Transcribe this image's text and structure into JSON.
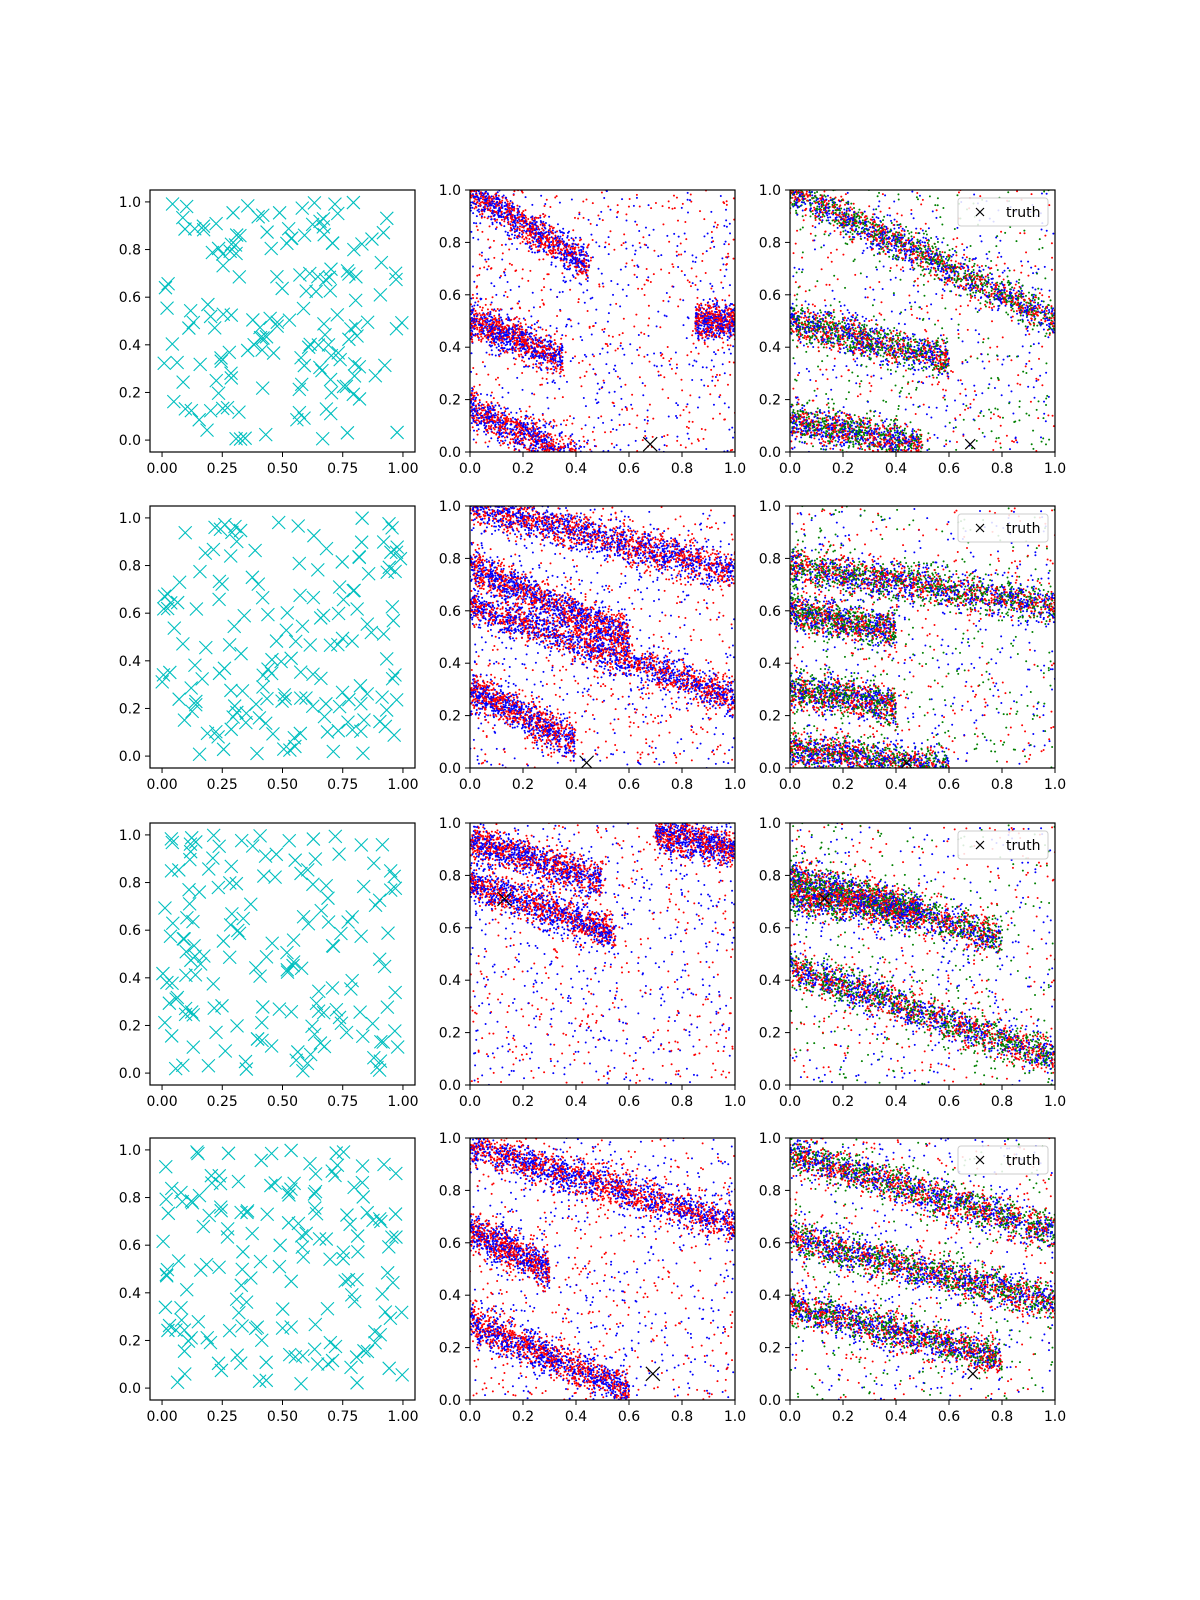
{
  "figure": {
    "layout": "4 rows x 3 columns grid of scatter plots",
    "legend_label": "truth",
    "legend_marker": "x",
    "colors": {
      "samples": "#00bfbf",
      "series_red": "#ff0000",
      "series_blue": "#0000ff",
      "series_green": "#008000",
      "truth": "#000000"
    }
  },
  "chart_data": [
    {
      "row": 0,
      "col": 0,
      "type": "scatter",
      "marker": "x",
      "color": "#00bfbf",
      "xlim": [
        -0.05,
        1.05
      ],
      "ylim": [
        -0.05,
        1.05
      ],
      "xticks": [
        "0.00",
        "0.25",
        "0.50",
        "0.75",
        "1.00"
      ],
      "yticks": [
        "0.0",
        "0.2",
        "0.4",
        "0.6",
        "0.8",
        "1.0"
      ],
      "n_points": 160
    },
    {
      "row": 0,
      "col": 1,
      "type": "scatter",
      "series": [
        {
          "name": "blue",
          "color": "#0000ff"
        },
        {
          "name": "red",
          "color": "#ff0000"
        }
      ],
      "bands": [
        {
          "y0": 1.0,
          "slope": -0.65,
          "w": 0.45
        },
        {
          "y0": 0.5,
          "slope": -0.4,
          "w": 0.35
        },
        {
          "y0": 0.17,
          "slope": -0.5,
          "w": 0.55
        },
        {
          "y0": 0.5,
          "slope": 0.0,
          "w": 0.2,
          "x0": 0.85
        }
      ],
      "truth": {
        "x": 0.68,
        "y": 0.03
      },
      "xlim": [
        0,
        1
      ],
      "ylim": [
        0,
        1
      ],
      "xticks": [
        "0.0",
        "0.2",
        "0.4",
        "0.6",
        "0.8",
        "1.0"
      ],
      "yticks": [
        "0.0",
        "0.2",
        "0.4",
        "0.6",
        "0.8",
        "1.0"
      ]
    },
    {
      "row": 0,
      "col": 2,
      "type": "scatter",
      "series": [
        {
          "name": "blue",
          "color": "#0000ff"
        },
        {
          "name": "red",
          "color": "#ff0000"
        },
        {
          "name": "green",
          "color": "#008000"
        }
      ],
      "bands": [
        {
          "y0": 1.0,
          "slope": -0.5,
          "w": 1.0
        },
        {
          "y0": 0.5,
          "slope": -0.25,
          "w": 0.6
        },
        {
          "y0": 0.12,
          "slope": -0.2,
          "w": 0.5
        }
      ],
      "truth": {
        "x": 0.68,
        "y": 0.03
      },
      "legend": "truth",
      "xlim": [
        0,
        1
      ],
      "ylim": [
        0,
        1
      ],
      "xticks": [
        "0.0",
        "0.2",
        "0.4",
        "0.6",
        "0.8",
        "1.0"
      ],
      "yticks": [
        "0.0",
        "0.2",
        "0.4",
        "0.6",
        "0.8",
        "1.0"
      ]
    },
    {
      "row": 1,
      "col": 0,
      "type": "scatter",
      "marker": "x",
      "color": "#00bfbf",
      "xlim": [
        -0.05,
        1.05
      ],
      "ylim": [
        -0.05,
        1.05
      ],
      "xticks": [
        "0.00",
        "0.25",
        "0.50",
        "0.75",
        "1.00"
      ],
      "yticks": [
        "0.0",
        "0.2",
        "0.4",
        "0.6",
        "0.8",
        "1.0"
      ],
      "n_points": 160
    },
    {
      "row": 1,
      "col": 1,
      "type": "scatter",
      "series": [
        {
          "name": "blue",
          "color": "#0000ff"
        },
        {
          "name": "red",
          "color": "#ff0000"
        }
      ],
      "bands": [
        {
          "y0": 1.0,
          "slope": -0.25,
          "w": 1.0
        },
        {
          "y0": 0.77,
          "slope": -0.45,
          "w": 0.6
        },
        {
          "y0": 0.62,
          "slope": -0.35,
          "w": 1.0
        },
        {
          "y0": 0.3,
          "slope": -0.5,
          "w": 0.4
        }
      ],
      "truth": {
        "x": 0.44,
        "y": 0.02
      },
      "xlim": [
        0,
        1
      ],
      "ylim": [
        0,
        1
      ],
      "xticks": [
        "0.0",
        "0.2",
        "0.4",
        "0.6",
        "0.8",
        "1.0"
      ],
      "yticks": [
        "0.0",
        "0.2",
        "0.4",
        "0.6",
        "0.8",
        "1.0"
      ]
    },
    {
      "row": 1,
      "col": 2,
      "type": "scatter",
      "series": [
        {
          "name": "blue",
          "color": "#0000ff"
        },
        {
          "name": "red",
          "color": "#ff0000"
        },
        {
          "name": "green",
          "color": "#008000"
        }
      ],
      "bands": [
        {
          "y0": 0.77,
          "slope": -0.15,
          "w": 1.0
        },
        {
          "y0": 0.6,
          "slope": -0.2,
          "w": 0.4
        },
        {
          "y0": 0.3,
          "slope": -0.15,
          "w": 0.4
        },
        {
          "y0": 0.07,
          "slope": -0.12,
          "w": 0.6
        }
      ],
      "truth": {
        "x": 0.44,
        "y": 0.02
      },
      "legend": "truth",
      "xlim": [
        0,
        1
      ],
      "ylim": [
        0,
        1
      ],
      "xticks": [
        "0.0",
        "0.2",
        "0.4",
        "0.6",
        "0.8",
        "1.0"
      ],
      "yticks": [
        "0.0",
        "0.2",
        "0.4",
        "0.6",
        "0.8",
        "1.0"
      ]
    },
    {
      "row": 2,
      "col": 0,
      "type": "scatter",
      "marker": "x",
      "color": "#00bfbf",
      "xlim": [
        -0.05,
        1.05
      ],
      "ylim": [
        -0.05,
        1.05
      ],
      "xticks": [
        "0.00",
        "0.25",
        "0.50",
        "0.75",
        "1.00"
      ],
      "yticks": [
        "0.0",
        "0.2",
        "0.4",
        "0.6",
        "0.8",
        "1.0"
      ],
      "n_points": 160
    },
    {
      "row": 2,
      "col": 1,
      "type": "scatter",
      "series": [
        {
          "name": "blue",
          "color": "#0000ff"
        },
        {
          "name": "red",
          "color": "#ff0000"
        }
      ],
      "bands": [
        {
          "y0": 0.77,
          "slope": -0.35,
          "w": 0.55
        },
        {
          "y0": 0.93,
          "slope": -0.3,
          "w": 0.5
        },
        {
          "y0": 1.1,
          "slope": -0.2,
          "w": 0.3,
          "x0": 0.7
        }
      ],
      "truth": {
        "x": 0.13,
        "y": 0.71
      },
      "xlim": [
        0,
        1
      ],
      "ylim": [
        0,
        1
      ],
      "xticks": [
        "0.0",
        "0.2",
        "0.4",
        "0.6",
        "0.8",
        "1.0"
      ],
      "yticks": [
        "0.0",
        "0.2",
        "0.4",
        "0.6",
        "0.8",
        "1.0"
      ]
    },
    {
      "row": 2,
      "col": 2,
      "type": "scatter",
      "series": [
        {
          "name": "blue",
          "color": "#0000ff"
        },
        {
          "name": "red",
          "color": "#ff0000"
        },
        {
          "name": "green",
          "color": "#008000"
        }
      ],
      "bands": [
        {
          "y0": 0.8,
          "slope": -0.3,
          "w": 0.8
        },
        {
          "y0": 0.72,
          "slope": -0.12,
          "w": 0.5
        },
        {
          "y0": 0.45,
          "slope": -0.35,
          "w": 1.0
        }
      ],
      "truth": {
        "x": 0.13,
        "y": 0.71
      },
      "legend": "truth",
      "xlim": [
        0,
        1
      ],
      "ylim": [
        0,
        1
      ],
      "xticks": [
        "0.0",
        "0.2",
        "0.4",
        "0.6",
        "0.8",
        "1.0"
      ],
      "yticks": [
        "0.0",
        "0.2",
        "0.4",
        "0.6",
        "0.8",
        "1.0"
      ]
    },
    {
      "row": 3,
      "col": 0,
      "type": "scatter",
      "marker": "x",
      "color": "#00bfbf",
      "xlim": [
        -0.05,
        1.05
      ],
      "ylim": [
        -0.05,
        1.05
      ],
      "xticks": [
        "0.00",
        "0.25",
        "0.50",
        "0.75",
        "1.00"
      ],
      "yticks": [
        "0.0",
        "0.2",
        "0.4",
        "0.6",
        "0.8",
        "1.0"
      ],
      "n_points": 160
    },
    {
      "row": 3,
      "col": 1,
      "type": "scatter",
      "series": [
        {
          "name": "blue",
          "color": "#0000ff"
        },
        {
          "name": "red",
          "color": "#ff0000"
        }
      ],
      "bands": [
        {
          "y0": 0.97,
          "slope": -0.3,
          "w": 1.0
        },
        {
          "y0": 0.3,
          "slope": -0.45,
          "w": 0.6
        },
        {
          "y0": 0.65,
          "slope": -0.5,
          "w": 0.3
        }
      ],
      "truth": {
        "x": 0.69,
        "y": 0.1
      },
      "xlim": [
        0,
        1
      ],
      "ylim": [
        0,
        1
      ],
      "xticks": [
        "0.0",
        "0.2",
        "0.4",
        "0.6",
        "0.8",
        "1.0"
      ],
      "yticks": [
        "0.0",
        "0.2",
        "0.4",
        "0.6",
        "0.8",
        "1.0"
      ]
    },
    {
      "row": 3,
      "col": 2,
      "type": "scatter",
      "series": [
        {
          "name": "blue",
          "color": "#0000ff"
        },
        {
          "name": "red",
          "color": "#ff0000"
        },
        {
          "name": "green",
          "color": "#008000"
        }
      ],
      "bands": [
        {
          "y0": 0.94,
          "slope": -0.3,
          "w": 1.0
        },
        {
          "y0": 0.62,
          "slope": -0.25,
          "w": 1.0
        },
        {
          "y0": 0.36,
          "slope": -0.25,
          "w": 0.8
        }
      ],
      "truth": {
        "x": 0.69,
        "y": 0.1
      },
      "legend": "truth",
      "xlim": [
        0,
        1
      ],
      "ylim": [
        0,
        1
      ],
      "xticks": [
        "0.0",
        "0.2",
        "0.4",
        "0.6",
        "0.8",
        "1.0"
      ],
      "yticks": [
        "0.0",
        "0.2",
        "0.4",
        "0.6",
        "0.8",
        "1.0"
      ]
    }
  ]
}
